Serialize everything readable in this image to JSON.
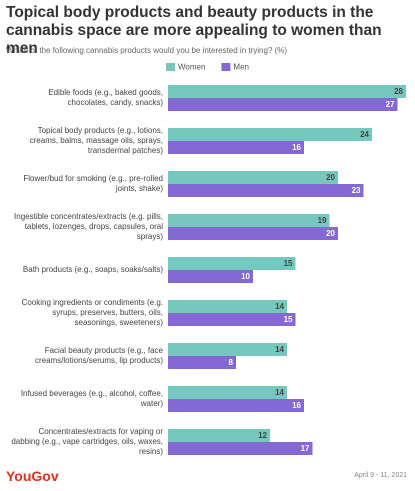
{
  "chart_data": {
    "type": "hbar",
    "title": "Topical body products and beauty products in the cannabis space are more appealing to women than men",
    "subtitle": "Which of the following cannabis products would you be interested in trying? (%)",
    "categories": [
      "Edible foods (e.g., baked goods, chocolates, candy, snacks)",
      "Topical body products (e.g., lotions, creams, balms, massage oils, sprays, transdermal patches)",
      "Flower/bud for smoking (e.g., pre-rolled joints, shake)",
      "Ingestible concentrates/extracts (e.g. pills, tablets, lozenges, drops, capsules, oral sprays)",
      "Bath products (e.g., soaps, soaks/salts)",
      "Cooking ingredients or condiments (e.g. syrups, preserves, butters, oils, seasonings, sweeteners)",
      "Facial beauty products (e.g., face creams/lotions/serums, lip products)",
      "Infused beverages (e.g., alcohol, coffee, water)",
      "Concentrates/extracts for vaping or dabbing (e.g., vape cartridges, oils, waxes, resins)"
    ],
    "series": [
      {
        "name": "Women",
        "color": "#74c8bd",
        "values": [
          28,
          24,
          20,
          19,
          15,
          14,
          14,
          14,
          12
        ]
      },
      {
        "name": "Men",
        "color": "#8469d5",
        "values": [
          27,
          16,
          23,
          20,
          10,
          15,
          8,
          16,
          17
        ]
      }
    ],
    "brand": "YouGov",
    "date": "April 9 - 11, 2021"
  }
}
